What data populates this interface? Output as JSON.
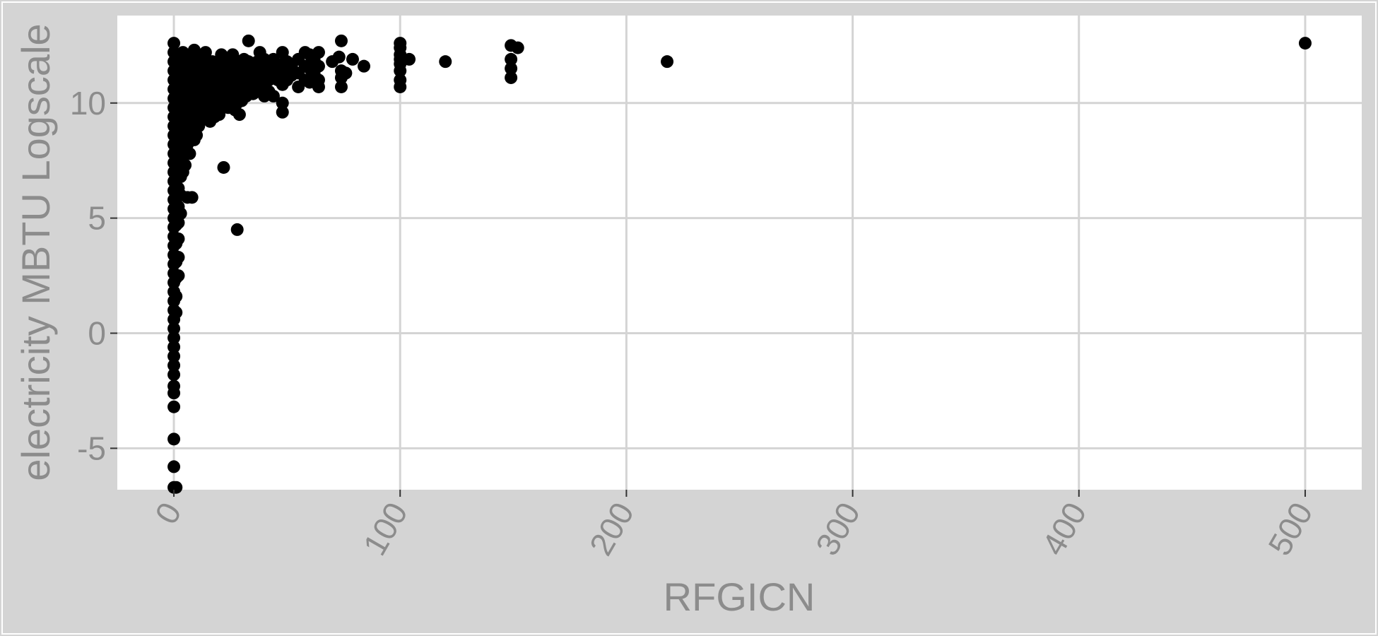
{
  "chart_data": {
    "type": "scatter",
    "title": "",
    "xlabel": "RFGICN",
    "ylabel": "electricity MBTU Logscale",
    "xlim": [
      -25,
      525
    ],
    "ylim": [
      -6.8,
      13.8
    ],
    "x_ticks": [
      0,
      100,
      200,
      300,
      400,
      500
    ],
    "x_tick_labels": [
      "0",
      "100",
      "200",
      "300",
      "400",
      "500"
    ],
    "y_ticks": [
      -5,
      0,
      5,
      10
    ],
    "y_tick_labels": [
      "-5",
      "0",
      "5",
      "10"
    ],
    "grid": true,
    "legend": "none",
    "colors": {
      "panel": "#ffffff",
      "background": "#d4d4d4",
      "grid": "#d4d4d4",
      "points": "#000000",
      "text": "#8c8c8c"
    },
    "points": [
      [
        0,
        12.6
      ],
      [
        0,
        12.2
      ],
      [
        0,
        11.8
      ],
      [
        0,
        11.4
      ],
      [
        0,
        11.0
      ],
      [
        0,
        10.6
      ],
      [
        0,
        10.2
      ],
      [
        0,
        9.8
      ],
      [
        0,
        9.4
      ],
      [
        0,
        9.0
      ],
      [
        0,
        8.6
      ],
      [
        0,
        8.2
      ],
      [
        0,
        7.8
      ],
      [
        0,
        7.4
      ],
      [
        0,
        7.0
      ],
      [
        0,
        6.6
      ],
      [
        0,
        6.2
      ],
      [
        0,
        5.8
      ],
      [
        0,
        5.4
      ],
      [
        0,
        5.0
      ],
      [
        0,
        4.6
      ],
      [
        0,
        4.2
      ],
      [
        0,
        3.8
      ],
      [
        0,
        3.4
      ],
      [
        0,
        3.0
      ],
      [
        0,
        2.6
      ],
      [
        0,
        2.2
      ],
      [
        0,
        1.8
      ],
      [
        0,
        1.4
      ],
      [
        0,
        1.0
      ],
      [
        0,
        0.6
      ],
      [
        0,
        0.2
      ],
      [
        0,
        -0.2
      ],
      [
        0,
        -0.6
      ],
      [
        0,
        -1.0
      ],
      [
        0,
        -1.4
      ],
      [
        0,
        -1.8
      ],
      [
        0,
        -2.3
      ],
      [
        0,
        -2.6
      ],
      [
        0,
        -3.2
      ],
      [
        0,
        -4.6
      ],
      [
        0,
        -5.8
      ],
      [
        0,
        -6.7
      ],
      [
        1,
        -6.7
      ],
      [
        1,
        12.0
      ],
      [
        1,
        11.2
      ],
      [
        1,
        10.5
      ],
      [
        1,
        9.9
      ],
      [
        1,
        9.1
      ],
      [
        1,
        8.3
      ],
      [
        1,
        7.6
      ],
      [
        1,
        6.9
      ],
      [
        1,
        6.1
      ],
      [
        1,
        5.4
      ],
      [
        1,
        4.7
      ],
      [
        1,
        3.9
      ],
      [
        1,
        3.1
      ],
      [
        1,
        2.4
      ],
      [
        1,
        1.6
      ],
      [
        1,
        0.9
      ],
      [
        2,
        12.1
      ],
      [
        2,
        11.3
      ],
      [
        2,
        10.4
      ],
      [
        2,
        9.6
      ],
      [
        2,
        8.7
      ],
      [
        2,
        7.9
      ],
      [
        2,
        7.1
      ],
      [
        2,
        6.3
      ],
      [
        2,
        5.5
      ],
      [
        2,
        4.8
      ],
      [
        2,
        4.1
      ],
      [
        2,
        3.3
      ],
      [
        2,
        2.5
      ],
      [
        3,
        11.9
      ],
      [
        3,
        11.0
      ],
      [
        3,
        10.1
      ],
      [
        3,
        9.3
      ],
      [
        3,
        8.4
      ],
      [
        3,
        7.6
      ],
      [
        3,
        6.8
      ],
      [
        3,
        6.0
      ],
      [
        3,
        5.2
      ],
      [
        4,
        12.2
      ],
      [
        4,
        11.5
      ],
      [
        4,
        10.8
      ],
      [
        4,
        10.0
      ],
      [
        4,
        9.2
      ],
      [
        4,
        8.5
      ],
      [
        4,
        7.7
      ],
      [
        4,
        7.0
      ],
      [
        5,
        11.6
      ],
      [
        5,
        10.9
      ],
      [
        5,
        10.2
      ],
      [
        5,
        9.4
      ],
      [
        5,
        8.7
      ],
      [
        5,
        8.0
      ],
      [
        5,
        7.3
      ],
      [
        6,
        12.0
      ],
      [
        6,
        11.2
      ],
      [
        6,
        10.4
      ],
      [
        6,
        9.7
      ],
      [
        6,
        8.9
      ],
      [
        6,
        8.2
      ],
      [
        6,
        5.9
      ],
      [
        7,
        11.7
      ],
      [
        7,
        10.9
      ],
      [
        7,
        10.1
      ],
      [
        7,
        9.3
      ],
      [
        7,
        8.6
      ],
      [
        7,
        7.8
      ],
      [
        8,
        11.9
      ],
      [
        8,
        11.1
      ],
      [
        8,
        10.3
      ],
      [
        8,
        9.5
      ],
      [
        8,
        8.7
      ],
      [
        8,
        5.9
      ],
      [
        9,
        12.3
      ],
      [
        9,
        11.5
      ],
      [
        9,
        10.7
      ],
      [
        9,
        9.9
      ],
      [
        9,
        9.1
      ],
      [
        9,
        8.4
      ],
      [
        10,
        11.8
      ],
      [
        10,
        11.0
      ],
      [
        10,
        10.2
      ],
      [
        10,
        9.4
      ],
      [
        10,
        8.6
      ],
      [
        11,
        12.1
      ],
      [
        11,
        11.3
      ],
      [
        11,
        10.5
      ],
      [
        11,
        9.7
      ],
      [
        11,
        9.0
      ],
      [
        12,
        11.6
      ],
      [
        12,
        10.8
      ],
      [
        12,
        10.0
      ],
      [
        12,
        9.3
      ],
      [
        13,
        11.9
      ],
      [
        13,
        11.1
      ],
      [
        13,
        10.3
      ],
      [
        13,
        9.5
      ],
      [
        14,
        12.2
      ],
      [
        14,
        11.4
      ],
      [
        14,
        10.6
      ],
      [
        14,
        9.8
      ],
      [
        15,
        11.7
      ],
      [
        15,
        10.9
      ],
      [
        15,
        10.1
      ],
      [
        15,
        9.4
      ],
      [
        16,
        11.5
      ],
      [
        16,
        10.7
      ],
      [
        16,
        10.0
      ],
      [
        16,
        9.2
      ],
      [
        17,
        11.8
      ],
      [
        17,
        11.0
      ],
      [
        17,
        10.2
      ],
      [
        17,
        9.5
      ],
      [
        18,
        11.6
      ],
      [
        18,
        10.8
      ],
      [
        18,
        10.1
      ],
      [
        18,
        9.4
      ],
      [
        19,
        11.3
      ],
      [
        19,
        10.5
      ],
      [
        19,
        9.7
      ],
      [
        20,
        11.7
      ],
      [
        20,
        10.9
      ],
      [
        20,
        10.2
      ],
      [
        20,
        9.5
      ],
      [
        21,
        12.1
      ],
      [
        21,
        11.4
      ],
      [
        21,
        10.6
      ],
      [
        22,
        11.5
      ],
      [
        22,
        10.8
      ],
      [
        22,
        10.1
      ],
      [
        22,
        7.2
      ],
      [
        23,
        11.9
      ],
      [
        23,
        11.1
      ],
      [
        23,
        10.4
      ],
      [
        24,
        11.2
      ],
      [
        24,
        10.5
      ],
      [
        24,
        9.8
      ],
      [
        25,
        11.6
      ],
      [
        25,
        10.9
      ],
      [
        25,
        10.2
      ],
      [
        26,
        12.1
      ],
      [
        26,
        11.3
      ],
      [
        26,
        10.6
      ],
      [
        27,
        11.7
      ],
      [
        27,
        11.0
      ],
      [
        27,
        10.3
      ],
      [
        27,
        9.7
      ],
      [
        28,
        11.4
      ],
      [
        28,
        10.7
      ],
      [
        28,
        10.0
      ],
      [
        28,
        4.5
      ],
      [
        29,
        11.8
      ],
      [
        29,
        11.1
      ],
      [
        29,
        10.4
      ],
      [
        29,
        9.5
      ],
      [
        30,
        11.5
      ],
      [
        30,
        10.8
      ],
      [
        30,
        10.1
      ],
      [
        31,
        11.9
      ],
      [
        31,
        11.2
      ],
      [
        31,
        10.5
      ],
      [
        32,
        11.6
      ],
      [
        32,
        10.9
      ],
      [
        32,
        10.3
      ],
      [
        33,
        12.7
      ],
      [
        33,
        11.8
      ],
      [
        33,
        11.1
      ],
      [
        33,
        10.4
      ],
      [
        34,
        11.4
      ],
      [
        34,
        10.7
      ],
      [
        35,
        11.7
      ],
      [
        35,
        11.0
      ],
      [
        35,
        10.4
      ],
      [
        36,
        11.3
      ],
      [
        36,
        10.6
      ],
      [
        37,
        11.8
      ],
      [
        37,
        11.1
      ],
      [
        37,
        10.5
      ],
      [
        38,
        12.2
      ],
      [
        38,
        11.5
      ],
      [
        38,
        10.8
      ],
      [
        39,
        11.2
      ],
      [
        39,
        10.6
      ],
      [
        40,
        11.9
      ],
      [
        40,
        11.4
      ],
      [
        40,
        10.8
      ],
      [
        40,
        10.3
      ],
      [
        42,
        11.6
      ],
      [
        42,
        11.0
      ],
      [
        42,
        10.5
      ],
      [
        44,
        11.9
      ],
      [
        44,
        11.3
      ],
      [
        44,
        10.3
      ],
      [
        46,
        11.5
      ],
      [
        46,
        11.0
      ],
      [
        48,
        12.2
      ],
      [
        48,
        11.7
      ],
      [
        48,
        11.1
      ],
      [
        48,
        10.8
      ],
      [
        48,
        10.0
      ],
      [
        48,
        9.6
      ],
      [
        50,
        11.8
      ],
      [
        50,
        11.4
      ],
      [
        50,
        11.0
      ],
      [
        52,
        11.6
      ],
      [
        52,
        11.2
      ],
      [
        55,
        11.9
      ],
      [
        55,
        11.3
      ],
      [
        55,
        10.7
      ],
      [
        58,
        12.2
      ],
      [
        58,
        11.6
      ],
      [
        58,
        11.0
      ],
      [
        60,
        12.1
      ],
      [
        60,
        11.5
      ],
      [
        60,
        10.9
      ],
      [
        62,
        11.9
      ],
      [
        62,
        11.3
      ],
      [
        64,
        12.2
      ],
      [
        64,
        11.6
      ],
      [
        64,
        11.0
      ],
      [
        64,
        10.7
      ],
      [
        70,
        11.8
      ],
      [
        73,
        12.0
      ],
      [
        74,
        12.7
      ],
      [
        74,
        11.4
      ],
      [
        74,
        11.1
      ],
      [
        74,
        10.7
      ],
      [
        76,
        11.3
      ],
      [
        79,
        11.9
      ],
      [
        84,
        11.6
      ],
      [
        100,
        12.6
      ],
      [
        100,
        12.4
      ],
      [
        100,
        12.1
      ],
      [
        100,
        11.9
      ],
      [
        100,
        11.7
      ],
      [
        100,
        11.4
      ],
      [
        100,
        11.0
      ],
      [
        100,
        10.7
      ],
      [
        104,
        11.9
      ],
      [
        120,
        11.8
      ],
      [
        149,
        12.5
      ],
      [
        149,
        11.9
      ],
      [
        149,
        11.5
      ],
      [
        149,
        11.1
      ],
      [
        152,
        12.4
      ],
      [
        218,
        11.8
      ],
      [
        500,
        12.6
      ]
    ]
  }
}
